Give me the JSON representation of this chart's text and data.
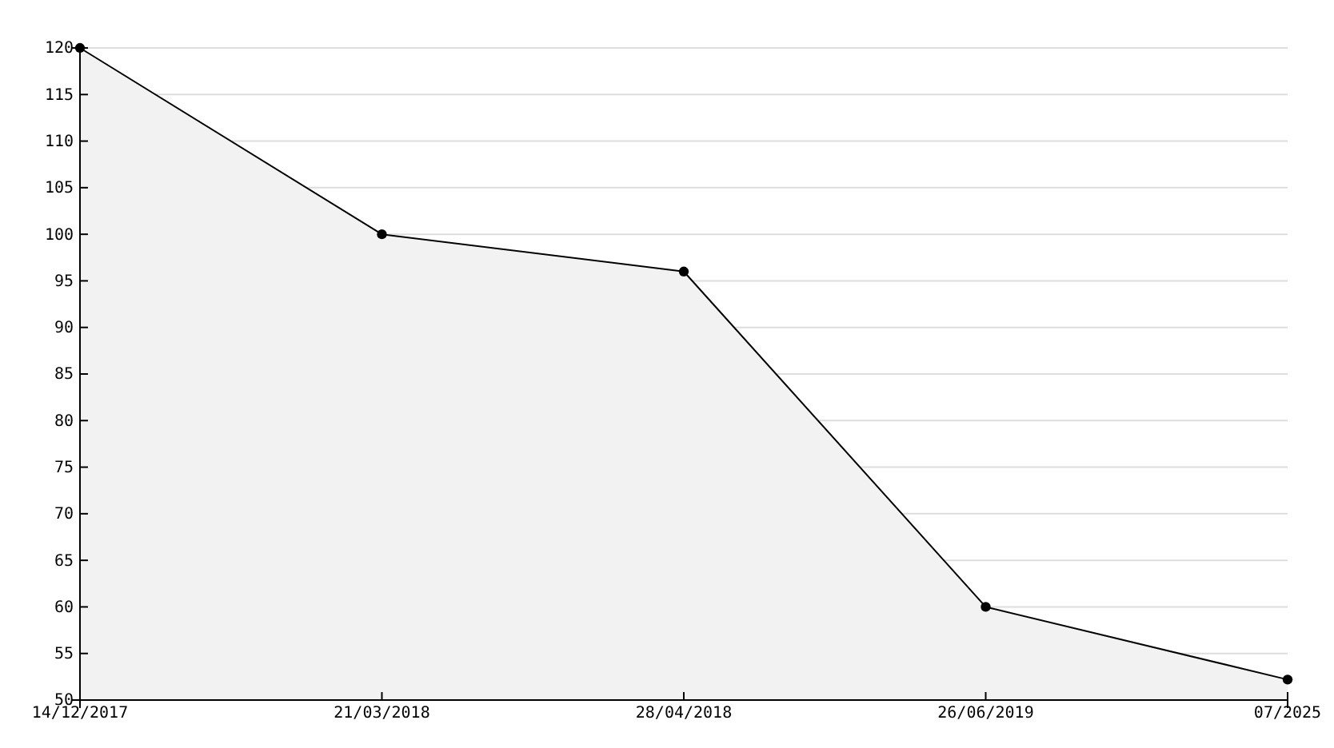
{
  "chart_data": {
    "type": "area",
    "categories": [
      "14/12/2017",
      "21/03/2018",
      "28/04/2018",
      "26/06/2019",
      "07/2025"
    ],
    "series": [
      {
        "color": "#000000",
        "values": [
          120,
          100,
          96,
          60,
          52.2
        ]
      }
    ],
    "ylim": [
      50,
      120
    ],
    "yticks": [
      50,
      55,
      60,
      65,
      70,
      75,
      80,
      85,
      90,
      95,
      100,
      105,
      110,
      115,
      120
    ],
    "grid": "y",
    "marker": "circle"
  }
}
